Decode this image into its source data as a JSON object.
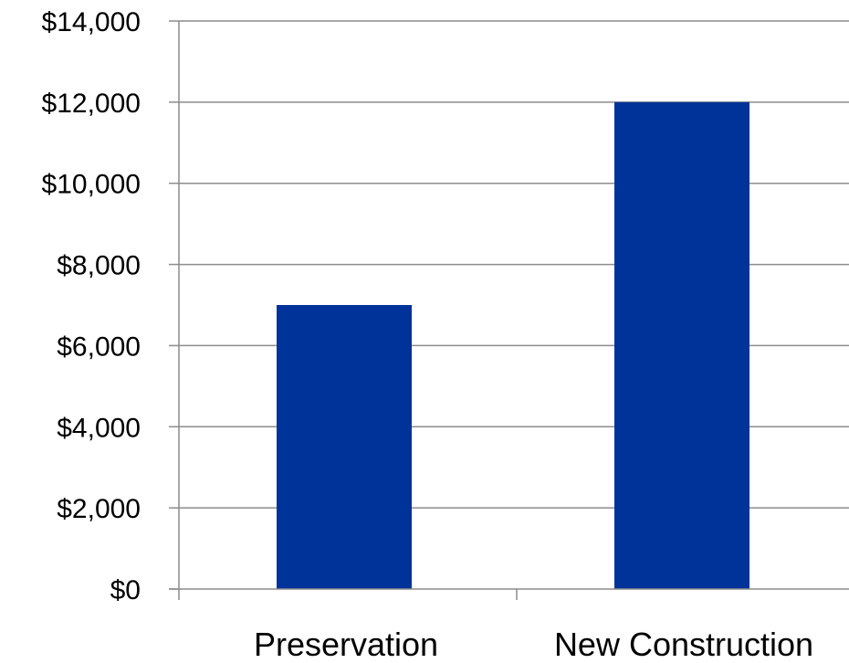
{
  "chart_data": {
    "type": "bar",
    "categories": [
      "Preservation",
      "New Construction"
    ],
    "values": [
      7000,
      12000
    ],
    "ylim": [
      0,
      14000
    ],
    "yticks": [
      0,
      2000,
      4000,
      6000,
      8000,
      10000,
      12000,
      14000
    ],
    "ytick_labels": [
      "$0",
      "$2,000",
      "$4,000",
      "$6,000",
      "$8,000",
      "$10,000",
      "$12,000",
      "$14,000"
    ],
    "title": "",
    "xlabel": "",
    "ylabel": "",
    "grid": true,
    "legend": "none",
    "bar_color": "#003399"
  }
}
